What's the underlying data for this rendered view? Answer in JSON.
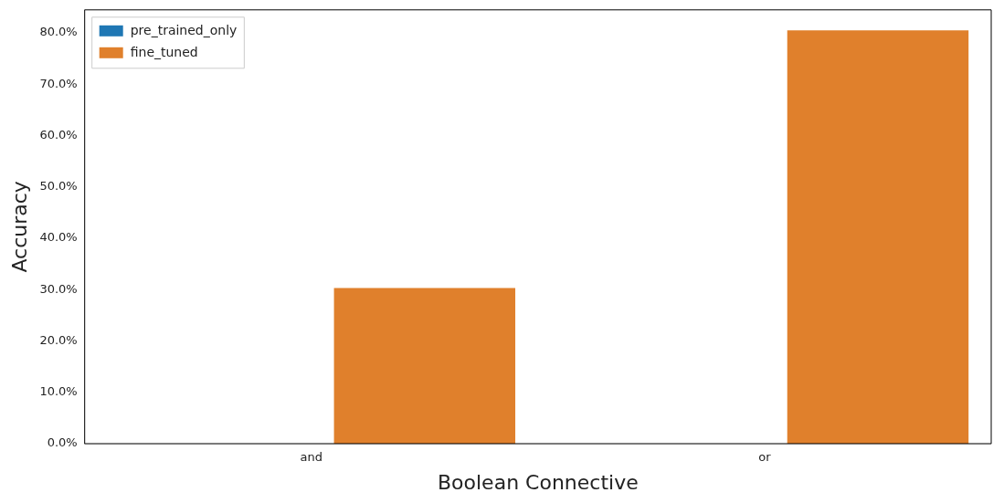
{
  "chart_data": {
    "type": "bar",
    "xlabel": "Boolean Connective",
    "ylabel": "Accuracy",
    "categories": [
      "and",
      "or"
    ],
    "series": [
      {
        "name": "pre_trained_only",
        "color": "#1f77b4",
        "values": [
          0,
          0
        ]
      },
      {
        "name": "fine_tuned",
        "color": "#e0802c",
        "values": [
          30.3,
          80.5
        ]
      }
    ],
    "ylim": [
      0,
      84.5
    ],
    "yticks": [
      {
        "value": 0,
        "label": "0.0%"
      },
      {
        "value": 10,
        "label": "10.0%"
      },
      {
        "value": 20,
        "label": "20.0%"
      },
      {
        "value": 30,
        "label": "30.0%"
      },
      {
        "value": 40,
        "label": "40.0%"
      },
      {
        "value": 50,
        "label": "50.0%"
      },
      {
        "value": 60,
        "label": "60.0%"
      },
      {
        "value": 70,
        "label": "70.0%"
      },
      {
        "value": 80,
        "label": "80.0%"
      }
    ],
    "grid": false,
    "legend": "top left"
  }
}
